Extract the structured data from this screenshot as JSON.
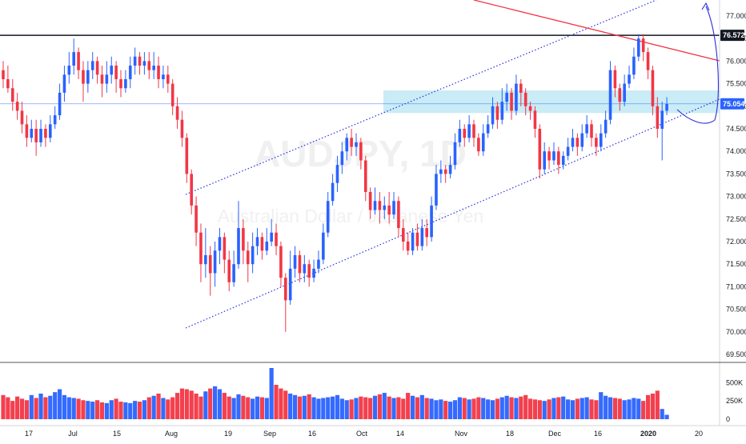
{
  "chart_data": {
    "type": "candlestick",
    "watermark": {
      "symbol": "AUDJPY, 1D",
      "name": "Australian Dollar / Japanese Yen"
    },
    "y_axis": {
      "ticks": [
        "77.000",
        "76.500",
        "76.000",
        "75.500",
        "75.000",
        "74.500",
        "74.000",
        "73.500",
        "73.000",
        "72.500",
        "72.000",
        "71.500",
        "71.000",
        "70.500",
        "70.000",
        "69.500"
      ],
      "range": [
        69.25,
        77.25
      ]
    },
    "volume_axis": {
      "ticks": [
        "500K",
        "250K",
        "0"
      ]
    },
    "x_axis": {
      "ticks": [
        "17",
        "Jul",
        "15",
        "Aug",
        "19",
        "Sep",
        "16",
        "Oct",
        "14",
        "Nov",
        "18",
        "Dec",
        "16",
        "2020",
        "20"
      ]
    },
    "price_badges": [
      {
        "label": "76.572",
        "price": 76.572,
        "color": "#131722"
      },
      {
        "label": "75.054",
        "price": 75.054,
        "color": "#2962ff"
      }
    ],
    "annotations": {
      "horizontal_line_price": 76.572,
      "support_zone": [
        74.85,
        75.35
      ],
      "reference_line_price": 75.054
    },
    "colors": {
      "up": "#2962ff",
      "down": "#f23645",
      "zone": "#b2e4f2",
      "trend": "#f23645",
      "channel": "#2a2ee0"
    },
    "candles": [
      [
        75.8,
        75.6,
        76.0,
        75.4
      ],
      [
        75.6,
        75.4,
        75.9,
        75.3
      ],
      [
        75.4,
        75.1,
        75.6,
        74.9
      ],
      [
        75.1,
        74.9,
        75.3,
        74.7
      ],
      [
        74.9,
        74.6,
        75.1,
        74.4
      ],
      [
        74.6,
        74.3,
        74.8,
        74.1
      ],
      [
        74.3,
        74.5,
        74.7,
        74.2
      ],
      [
        74.5,
        74.2,
        74.7,
        73.9
      ],
      [
        74.2,
        74.5,
        74.7,
        74.1
      ],
      [
        74.5,
        74.3,
        74.6,
        74.1
      ],
      [
        74.3,
        74.6,
        74.8,
        74.2
      ],
      [
        74.6,
        74.8,
        75.0,
        74.5
      ],
      [
        74.8,
        75.3,
        75.5,
        74.7
      ],
      [
        75.3,
        75.7,
        75.9,
        75.1
      ],
      [
        75.7,
        75.9,
        76.2,
        75.5
      ],
      [
        75.9,
        76.2,
        76.5,
        75.7
      ],
      [
        76.2,
        75.8,
        76.3,
        75.6
      ],
      [
        75.8,
        75.5,
        76.0,
        75.1
      ],
      [
        75.5,
        75.8,
        76.0,
        75.3
      ],
      [
        75.8,
        76.0,
        76.2,
        75.6
      ],
      [
        76.0,
        75.7,
        76.1,
        75.5
      ],
      [
        75.7,
        75.5,
        75.9,
        75.2
      ],
      [
        75.5,
        75.7,
        76.0,
        75.3
      ],
      [
        75.7,
        75.9,
        76.1,
        75.5
      ],
      [
        75.9,
        75.6,
        76.0,
        75.3
      ],
      [
        75.6,
        75.4,
        75.8,
        75.2
      ],
      [
        75.4,
        75.6,
        75.8,
        75.3
      ],
      [
        75.6,
        75.9,
        76.1,
        75.4
      ],
      [
        75.9,
        76.1,
        76.3,
        75.7
      ],
      [
        76.1,
        75.9,
        76.2,
        75.7
      ],
      [
        75.9,
        76.0,
        76.2,
        75.7
      ],
      [
        76.0,
        75.8,
        76.2,
        75.6
      ],
      [
        75.8,
        75.9,
        76.2,
        75.6
      ],
      [
        75.9,
        75.6,
        76.1,
        75.4
      ],
      [
        75.6,
        75.7,
        75.9,
        75.4
      ],
      [
        75.7,
        75.5,
        75.9,
        75.3
      ],
      [
        75.5,
        75.0,
        75.6,
        74.8
      ],
      [
        75.0,
        74.7,
        75.2,
        74.5
      ],
      [
        74.7,
        74.3,
        74.9,
        74.1
      ],
      [
        74.3,
        73.5,
        74.4,
        73.3
      ],
      [
        73.5,
        72.8,
        73.6,
        72.6
      ],
      [
        72.8,
        72.2,
        73.0,
        71.9
      ],
      [
        72.2,
        71.5,
        72.4,
        71.1
      ],
      [
        71.5,
        71.7,
        72.3,
        71.2
      ],
      [
        71.7,
        71.3,
        71.9,
        70.8
      ],
      [
        71.3,
        71.8,
        72.0,
        71.0
      ],
      [
        71.8,
        72.1,
        72.3,
        71.5
      ],
      [
        72.1,
        71.6,
        72.2,
        71.3
      ],
      [
        71.6,
        71.1,
        71.8,
        70.9
      ],
      [
        71.1,
        71.5,
        71.8,
        71.0
      ],
      [
        71.5,
        72.3,
        72.9,
        71.4
      ],
      [
        72.3,
        71.8,
        72.5,
        71.5
      ],
      [
        71.8,
        71.5,
        72.0,
        71.1
      ],
      [
        71.5,
        71.9,
        72.2,
        71.3
      ],
      [
        71.9,
        72.1,
        72.3,
        71.7
      ],
      [
        72.1,
        71.8,
        72.2,
        71.6
      ],
      [
        71.8,
        72.0,
        72.3,
        71.7
      ],
      [
        72.0,
        72.2,
        72.5,
        71.9
      ],
      [
        72.2,
        71.9,
        72.4,
        71.7
      ],
      [
        71.9,
        71.2,
        72.0,
        71.0
      ],
      [
        71.2,
        70.7,
        71.3,
        70.0
      ],
      [
        70.7,
        71.4,
        71.8,
        70.6
      ],
      [
        71.4,
        71.7,
        71.9,
        71.2
      ],
      [
        71.7,
        71.3,
        71.8,
        71.1
      ],
      [
        71.3,
        71.5,
        71.7,
        71.1
      ],
      [
        71.5,
        71.2,
        71.6,
        71.0
      ],
      [
        71.2,
        71.4,
        71.6,
        71.1
      ],
      [
        71.4,
        71.6,
        71.8,
        71.3
      ],
      [
        71.6,
        72.2,
        72.4,
        71.5
      ],
      [
        72.2,
        72.9,
        73.1,
        72.1
      ],
      [
        72.9,
        73.3,
        73.5,
        72.8
      ],
      [
        73.3,
        73.7,
        73.9,
        73.1
      ],
      [
        73.7,
        74.0,
        74.2,
        73.5
      ],
      [
        74.0,
        74.3,
        74.4,
        73.8
      ],
      [
        74.3,
        74.1,
        74.5,
        73.9
      ],
      [
        74.1,
        74.2,
        74.4,
        73.9
      ],
      [
        74.2,
        73.8,
        74.3,
        73.6
      ],
      [
        73.8,
        73.1,
        73.9,
        72.9
      ],
      [
        73.1,
        72.7,
        73.2,
        72.5
      ],
      [
        72.7,
        72.9,
        73.2,
        72.6
      ],
      [
        72.9,
        72.7,
        73.1,
        72.4
      ],
      [
        72.7,
        72.8,
        73.0,
        72.5
      ],
      [
        72.8,
        72.6,
        73.1,
        72.4
      ],
      [
        72.6,
        72.9,
        73.1,
        72.5
      ],
      [
        72.9,
        72.3,
        73.0,
        72.1
      ],
      [
        72.3,
        72.0,
        72.5,
        71.8
      ],
      [
        72.0,
        71.8,
        72.2,
        71.7
      ],
      [
        71.8,
        72.2,
        72.3,
        71.7
      ],
      [
        72.2,
        71.9,
        72.4,
        71.8
      ],
      [
        71.9,
        72.3,
        72.5,
        71.8
      ],
      [
        72.3,
        72.1,
        72.5,
        71.9
      ],
      [
        72.1,
        72.8,
        73.0,
        72.0
      ],
      [
        72.8,
        73.5,
        73.7,
        72.7
      ],
      [
        73.5,
        73.6,
        73.8,
        73.3
      ],
      [
        73.6,
        73.5,
        73.7,
        73.3
      ],
      [
        73.5,
        73.7,
        73.9,
        73.4
      ],
      [
        73.7,
        74.2,
        74.4,
        73.6
      ],
      [
        74.2,
        74.5,
        74.7,
        74.1
      ],
      [
        74.5,
        74.3,
        74.6,
        74.1
      ],
      [
        74.3,
        74.6,
        74.8,
        74.2
      ],
      [
        74.6,
        74.3,
        74.7,
        74.1
      ],
      [
        74.3,
        74.0,
        74.4,
        73.9
      ],
      [
        74.0,
        74.4,
        74.6,
        73.9
      ],
      [
        74.4,
        74.6,
        74.8,
        74.3
      ],
      [
        74.6,
        75.0,
        75.2,
        74.5
      ],
      [
        75.0,
        74.7,
        75.1,
        74.5
      ],
      [
        74.7,
        75.1,
        75.4,
        74.6
      ],
      [
        75.1,
        75.3,
        75.5,
        74.9
      ],
      [
        75.3,
        74.9,
        75.4,
        74.7
      ],
      [
        74.9,
        75.5,
        75.7,
        74.8
      ],
      [
        75.5,
        75.3,
        75.6,
        75.0
      ],
      [
        75.3,
        75.0,
        75.4,
        74.8
      ],
      [
        75.0,
        74.9,
        75.1,
        74.7
      ],
      [
        74.9,
        74.5,
        75.0,
        74.3
      ],
      [
        74.5,
        73.6,
        74.6,
        73.4
      ],
      [
        73.6,
        74.0,
        74.2,
        73.5
      ],
      [
        74.0,
        73.8,
        74.1,
        73.6
      ],
      [
        73.8,
        74.0,
        74.2,
        73.7
      ],
      [
        74.0,
        73.7,
        74.1,
        73.5
      ],
      [
        73.7,
        73.9,
        74.0,
        73.6
      ],
      [
        73.9,
        74.1,
        74.3,
        73.8
      ],
      [
        74.1,
        74.3,
        74.5,
        74.0
      ],
      [
        74.3,
        74.1,
        74.4,
        73.9
      ],
      [
        74.1,
        74.4,
        74.6,
        74.0
      ],
      [
        74.4,
        74.6,
        74.8,
        74.3
      ],
      [
        74.6,
        74.3,
        74.7,
        74.1
      ],
      [
        74.3,
        74.1,
        74.4,
        73.9
      ],
      [
        74.1,
        74.4,
        74.6,
        74.0
      ],
      [
        74.4,
        74.7,
        74.9,
        74.3
      ],
      [
        74.7,
        75.8,
        76.0,
        74.6
      ],
      [
        75.8,
        75.4,
        75.9,
        75.2
      ],
      [
        75.4,
        75.1,
        75.5,
        74.9
      ],
      [
        75.1,
        75.5,
        75.7,
        75.0
      ],
      [
        75.5,
        75.7,
        75.9,
        75.4
      ],
      [
        75.7,
        76.1,
        76.3,
        75.6
      ],
      [
        76.1,
        76.5,
        76.6,
        76.0
      ],
      [
        76.5,
        76.2,
        76.6,
        76.0
      ],
      [
        76.2,
        75.8,
        76.3,
        75.6
      ],
      [
        75.8,
        75.0,
        75.9,
        74.8
      ],
      [
        75.0,
        74.5,
        75.2,
        74.3
      ],
      [
        74.5,
        74.9,
        75.1,
        73.8
      ],
      [
        74.9,
        75.05,
        75.2,
        74.8
      ]
    ],
    "volume_k": [
      330,
      300,
      250,
      310,
      280,
      260,
      330,
      290,
      350,
      300,
      320,
      370,
      410,
      330,
      300,
      290,
      280,
      260,
      250,
      240,
      260,
      230,
      220,
      260,
      280,
      240,
      230,
      220,
      250,
      240,
      260,
      300,
      320,
      350,
      290,
      270,
      300,
      360,
      420,
      410,
      390,
      350,
      310,
      380,
      420,
      450,
      410,
      360,
      310,
      290,
      340,
      320,
      300,
      280,
      310,
      300,
      290,
      700,
      470,
      420,
      390,
      350,
      330,
      310,
      320,
      340,
      300,
      280,
      290,
      300,
      310,
      330,
      280,
      260,
      270,
      290,
      310,
      300,
      290,
      320,
      340,
      360,
      310,
      290,
      300,
      280,
      360,
      320,
      300,
      330,
      290,
      280,
      260,
      270,
      250,
      240,
      260,
      300,
      290,
      270,
      280,
      300,
      290,
      270,
      260,
      280,
      300,
      320,
      300,
      290,
      310,
      330,
      280,
      270,
      260,
      250,
      270,
      290,
      300,
      310,
      270,
      260,
      280,
      290,
      300,
      270,
      260,
      370,
      320,
      300,
      290,
      280,
      260,
      270,
      290,
      280,
      250,
      330,
      350,
      390,
      140,
      60
    ]
  }
}
